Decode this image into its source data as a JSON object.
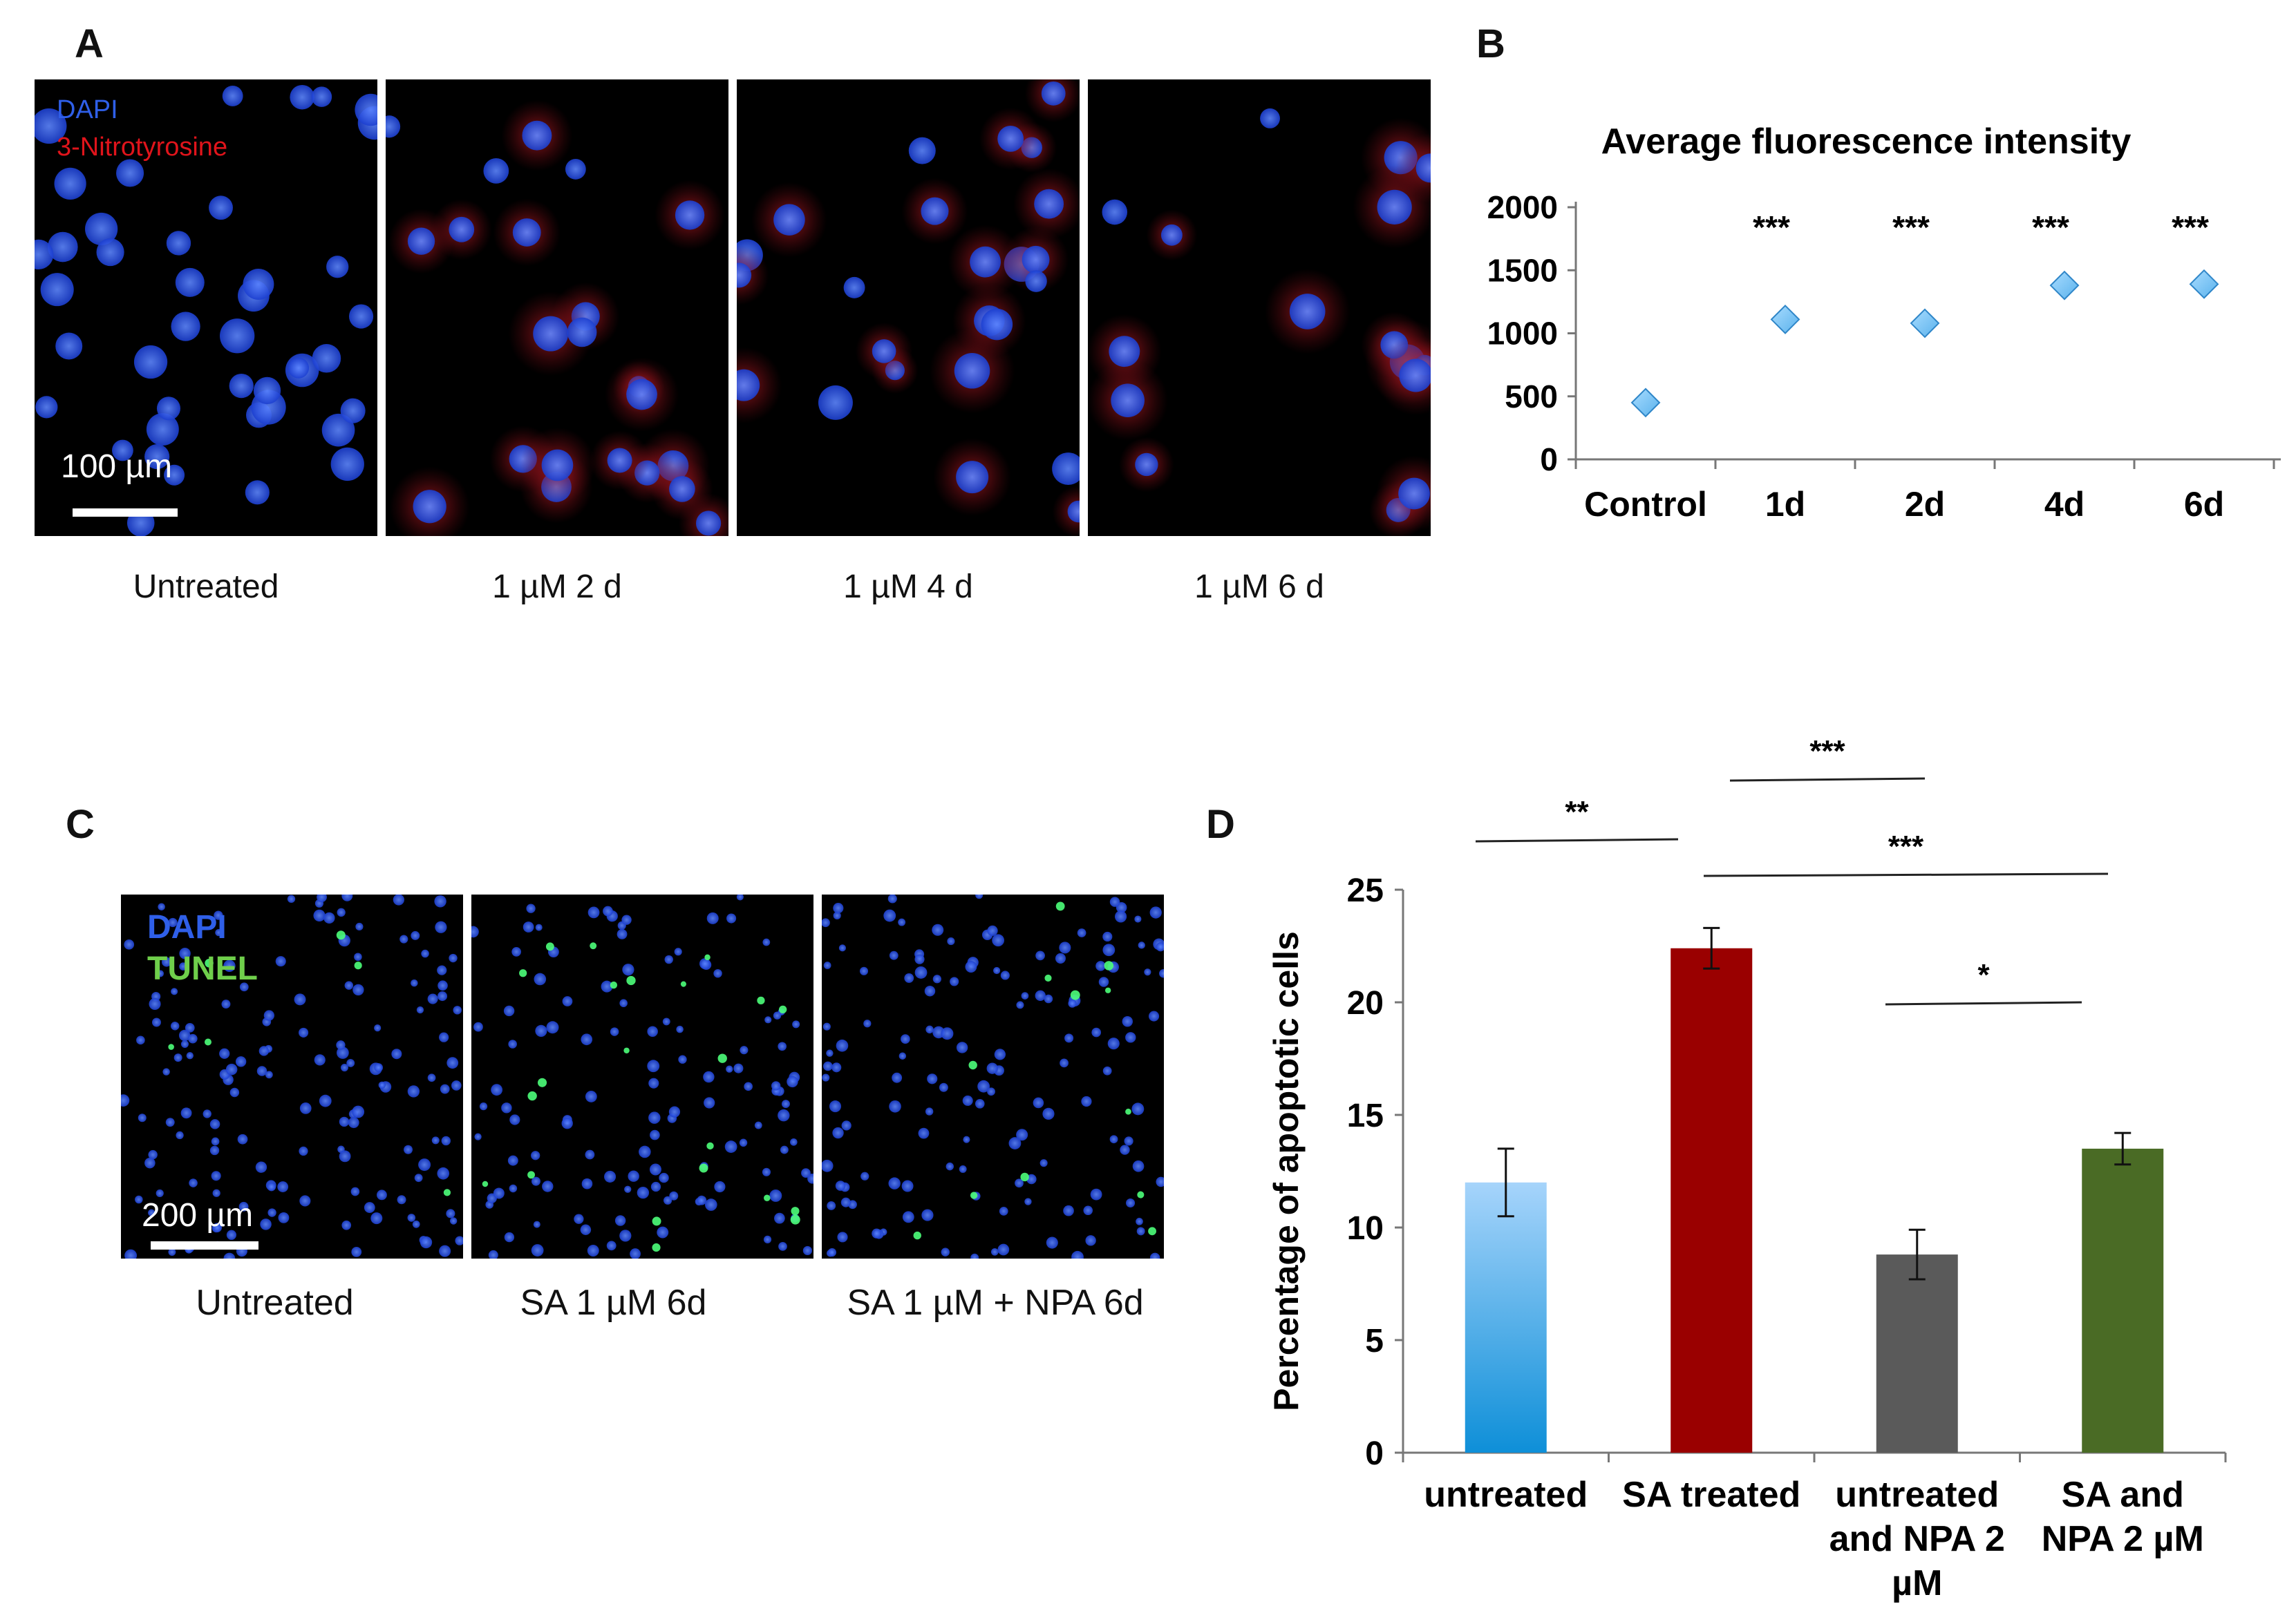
{
  "panels": {
    "a": {
      "letter": "A",
      "legend": {
        "line1": "DAPI",
        "line2": "3-Nitrotyrosine"
      },
      "scale_label": "100 µm",
      "images": [
        {
          "caption": "Untreated"
        },
        {
          "caption": "1 µM 2 d"
        },
        {
          "caption": "1 µM 4 d"
        },
        {
          "caption": "1 µM 6 d"
        }
      ]
    },
    "b": {
      "letter": "B"
    },
    "c": {
      "letter": "C",
      "legend": {
        "line1": "DAPI",
        "line2": "TUNEL"
      },
      "scale_label": "200 µm",
      "images": [
        {
          "caption": "Untreated"
        },
        {
          "caption": "SA 1 µM 6d"
        },
        {
          "caption": "SA 1 µM + NPA  6d"
        }
      ]
    },
    "d": {
      "letter": "D"
    }
  },
  "colors": {
    "dapi_blue": "#2f5fe8",
    "nitro_red": "#e0141b",
    "tunel_green": "#6fcf4b",
    "marker_blue": "#5ab2ec",
    "bar_light_blue": "#5aaef0",
    "bar_red": "#9a0000",
    "bar_gray": "#5a5a5a",
    "bar_green": "#4a6b25"
  },
  "chart_data": [
    {
      "type": "scatter",
      "panel": "B",
      "title": "Average fluorescence  intensity",
      "categories": [
        "Control",
        "1d",
        "2d",
        "4d",
        "6d"
      ],
      "values": [
        450,
        1110,
        1080,
        1380,
        1390
      ],
      "significance": [
        "",
        "***",
        "***",
        "***",
        "***"
      ],
      "ylim": [
        0,
        2000
      ],
      "yticks": [
        "0",
        "500",
        "1000",
        "1500",
        "2000"
      ],
      "grid": false
    },
    {
      "type": "bar",
      "panel": "D",
      "ylabel": "Percentage of apoptotic cells",
      "categories": [
        [
          "untreated"
        ],
        [
          "SA treated"
        ],
        [
          "untreated",
          "and NPA 2",
          "µM"
        ],
        [
          "SA and",
          "NPA 2 µM"
        ]
      ],
      "values": [
        12.0,
        22.4,
        8.8,
        13.5
      ],
      "errors": [
        1.5,
        0.9,
        1.1,
        0.7
      ],
      "ylim": [
        0,
        25
      ],
      "yticks": [
        "0",
        "5",
        "10",
        "15",
        "20",
        "25"
      ],
      "comparisons": [
        {
          "from": 0,
          "to": 1,
          "label": "**"
        },
        {
          "from": 1,
          "to": 2,
          "label": "***"
        },
        {
          "from": 1,
          "to": 3,
          "label": "***"
        },
        {
          "from": 2,
          "to": 3,
          "label": "*"
        }
      ],
      "grid": false
    }
  ]
}
